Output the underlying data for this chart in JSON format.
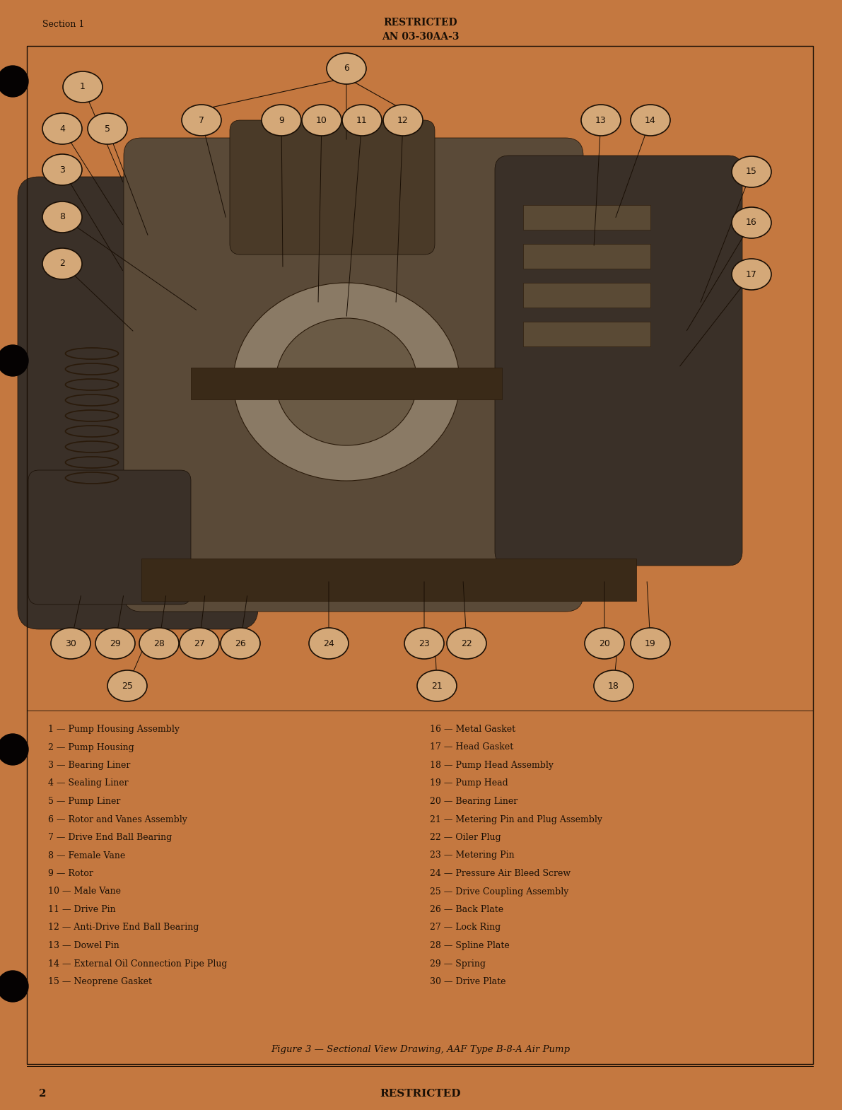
{
  "background_color": "#c47840",
  "border_color": "#1a0f05",
  "header_left": "Section 1",
  "header_center_line1": "RESTRICTED",
  "header_center_line2": "AN 03-30AA-3",
  "footer_caption": "Figure 3 — Sectional View Drawing, AAF Type B-8-A Air Pump",
  "footer_page_num": "2",
  "footer_restricted": "RESTRICTED",
  "parts_left": [
    "1 — Pump Housing Assembly",
    "2 — Pump Housing",
    "3 — Bearing Liner",
    "4 — Sealing Liner",
    "5 — Pump Liner",
    "6 — Rotor and Vanes Assembly",
    "7 — Drive End Ball Bearing",
    "8 — Female Vane",
    "9 — Rotor",
    "10 — Male Vane",
    "11 — Drive Pin",
    "12 — Anti-Drive End Ball Bearing",
    "13 — Dowel Pin",
    "14 — External Oil Connection Pipe Plug",
    "15 — Neoprene Gasket"
  ],
  "parts_right": [
    "16 — Metal Gasket",
    "17 — Head Gasket",
    "18 — Pump Head Assembly",
    "19 — Pump Head",
    "20 — Bearing Liner",
    "21 — Metering Pin and Plug Assembly",
    "22 — Oiler Plug",
    "23 — Metering Pin",
    "24 — Pressure Air Bleed Screw",
    "25 — Drive Coupling Assembly",
    "26 — Back Plate",
    "27 — Lock Ring",
    "28 — Spline Plate",
    "29 — Spring",
    "30 — Drive Plate"
  ],
  "text_color": "#1a0f05",
  "callout_bg": "#d4a878",
  "callout_border": "#1a0f05",
  "diagram_dark": "#3a3028",
  "diagram_mid": "#5a4a38",
  "diagram_light": "#7a6555"
}
